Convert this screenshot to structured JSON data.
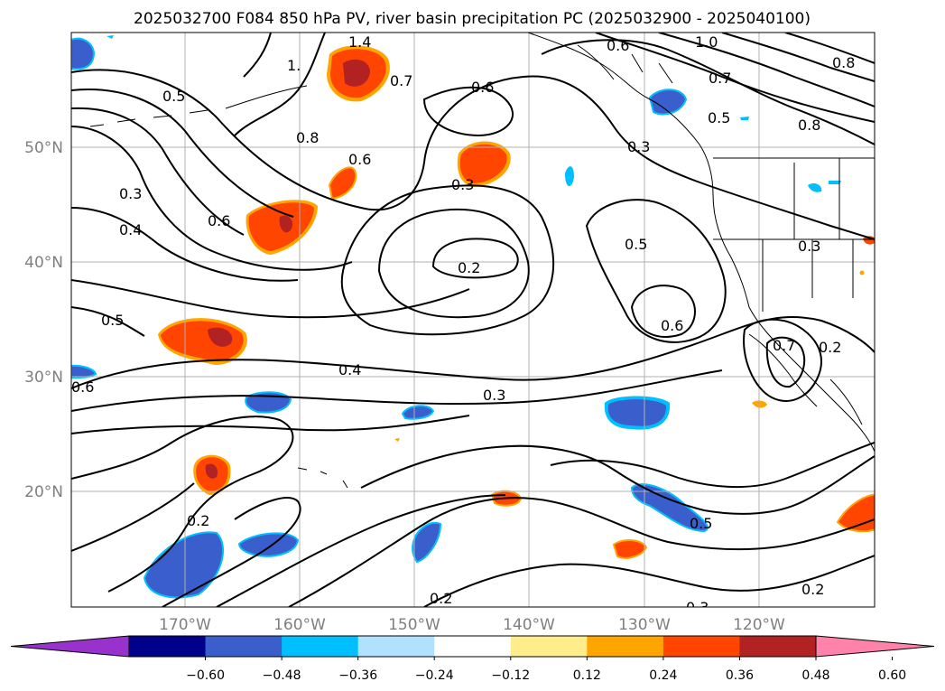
{
  "title": "2025032700 F084 850 hPa PV, river basin precipitation PC (2025032900 - 2025040100)",
  "lat_labels": [
    "50°N",
    "40°N",
    "30°N",
    "20°N"
  ],
  "lon_labels": [
    "170°W",
    "160°W",
    "150°W",
    "140°W",
    "130°W",
    "120°W"
  ],
  "contour_labels": [
    "1.4",
    "1.",
    "0.5",
    "0.8",
    "0.3",
    "0.4",
    "0.6",
    "0.6",
    "0.7",
    "0.6",
    "0.3",
    "0.2",
    "0.6",
    "1.0",
    "0.7",
    "0.5",
    "0.8",
    "0.8",
    "0.3",
    "0.5",
    "0.6",
    "0.3",
    "0.5",
    "0.6",
    "0.4",
    "0.3",
    "0.7",
    "0.2",
    "0.2",
    "0.5",
    "0.2",
    "0.3",
    "0.2"
  ],
  "colorbar": {
    "ticks": [
      "−0.60",
      "−0.48",
      "−0.36",
      "−0.24",
      "−0.12",
      "0.12",
      "0.24",
      "0.36",
      "0.48",
      "0.60"
    ],
    "colors": [
      "#9932cc",
      "#00008b",
      "#3a5fcd",
      "#00bfff",
      "#b0e2ff",
      "#ffffff",
      "#ffec8b",
      "#ffa500",
      "#ff4500",
      "#b22222",
      "#ff82ab"
    ]
  },
  "colors": {
    "contour": "#000000",
    "grid": "#b0b0b0",
    "coast": "#000000"
  }
}
